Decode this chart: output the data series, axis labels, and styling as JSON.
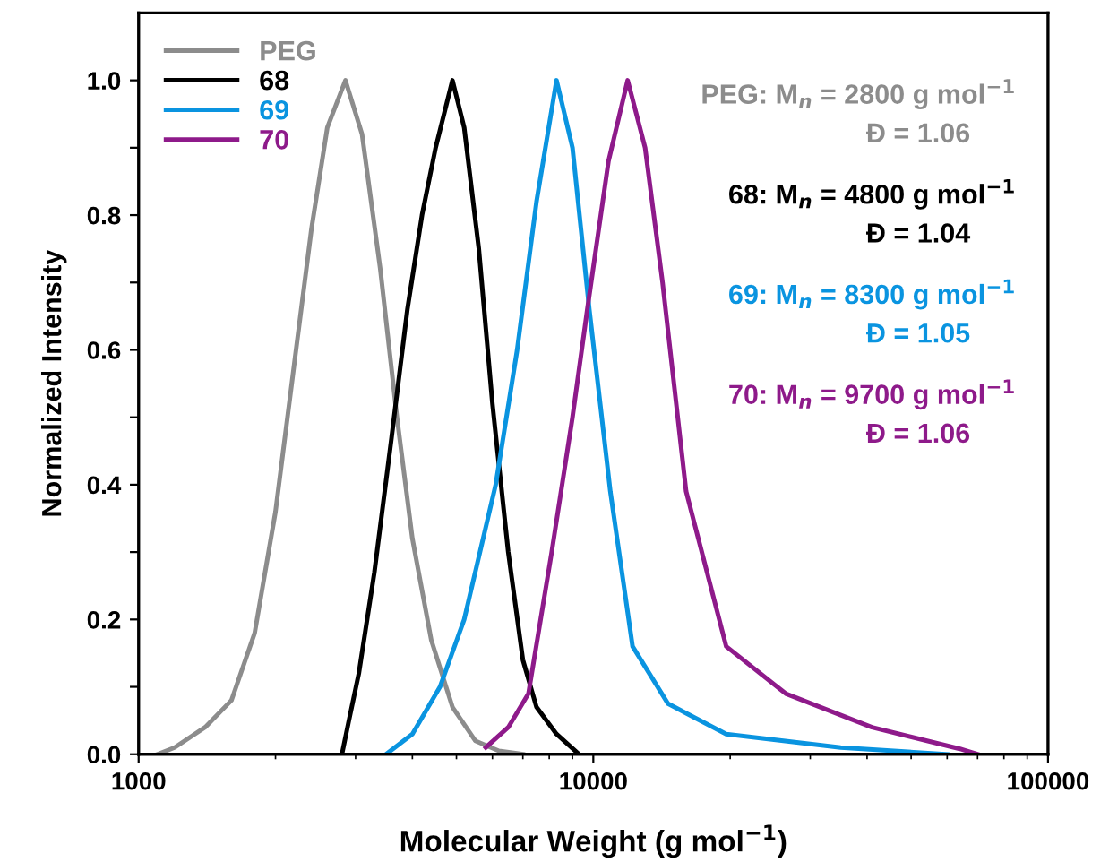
{
  "chart_data": {
    "type": "line",
    "xlabel": "Molecular Weight (g mol$^{−1}$)",
    "ylabel": "Normalized Intensity",
    "log": "x",
    "xlim": [
      1000,
      100000
    ],
    "xticks": [
      1000,
      10000,
      100000
    ],
    "ylim": [
      0,
      1.1
    ],
    "yticks": [
      {
        "value": 0.0,
        "label": "0.0"
      },
      {
        "value": 0.1,
        "label": null
      },
      {
        "value": 0.2,
        "label": "0.2"
      },
      {
        "value": 0.3,
        "label": null
      },
      {
        "value": 0.4,
        "label": "0.4"
      },
      {
        "value": 0.5,
        "label": null
      },
      {
        "value": 0.6,
        "label": "0.6"
      },
      {
        "value": 0.7,
        "label": null
      },
      {
        "value": 0.8,
        "label": "0.8"
      },
      {
        "value": 0.9,
        "label": null
      },
      {
        "value": 1.0,
        "label": "1.0"
      }
    ],
    "grid": false,
    "legend": "top left",
    "marker": "none",
    "line_style": "solid",
    "series": [
      {
        "name": "PEG",
        "color": "#8c8c8c",
        "x": [
          1100,
          1200,
          1400,
          1600,
          1800,
          2000,
          2200,
          2400,
          2600,
          2850,
          3100,
          3400,
          3700,
          4000,
          4400,
          4900,
          5500,
          6200,
          7000
        ],
        "values": [
          0,
          0.01,
          0.04,
          0.08,
          0.18,
          0.36,
          0.58,
          0.78,
          0.93,
          1.0,
          0.92,
          0.72,
          0.5,
          0.32,
          0.17,
          0.07,
          0.02,
          0.005,
          0
        ]
      },
      {
        "name": "68",
        "color": "#000000",
        "x": [
          2800,
          2900,
          3050,
          3300,
          3600,
          3900,
          4200,
          4500,
          4900,
          5200,
          5600,
          6000,
          6500,
          7000,
          7500,
          8300,
          9300
        ],
        "values": [
          0,
          0.05,
          0.12,
          0.27,
          0.47,
          0.66,
          0.8,
          0.9,
          1.0,
          0.93,
          0.75,
          0.52,
          0.3,
          0.14,
          0.07,
          0.03,
          0
        ]
      },
      {
        "name": "69",
        "color": "#0a94e0",
        "x": [
          3500,
          4000,
          4600,
          5200,
          6100,
          6800,
          7500,
          8300,
          9000,
          9800,
          10900,
          12200,
          14600,
          19600,
          35000,
          60000
        ],
        "values": [
          0,
          0.03,
          0.1,
          0.2,
          0.4,
          0.6,
          0.82,
          1.0,
          0.9,
          0.66,
          0.39,
          0.16,
          0.075,
          0.03,
          0.01,
          0
        ]
      },
      {
        "name": "70",
        "color": "#8e1a8a",
        "x": [
          5800,
          6500,
          7200,
          8100,
          9000,
          9700,
          10800,
          11900,
          13000,
          14200,
          16000,
          19600,
          26500,
          41000,
          64000,
          70000
        ],
        "values": [
          0.01,
          0.04,
          0.09,
          0.3,
          0.5,
          0.66,
          0.88,
          1.0,
          0.9,
          0.7,
          0.39,
          0.16,
          0.09,
          0.04,
          0.008,
          0
        ]
      }
    ],
    "annotations": [
      "PEG: M$_{n}$ = 2800 g mol$^{−1}$",
      "Đ = 1.06",
      "68: M$_{n}$ = 4800 g mol$^{−1}$",
      "Đ = 1.04",
      "69: M$_{n}$ = 8300 g mol$^{−1}$",
      "Đ = 1.05",
      "70: M$_{n}$ = 9700 g mol$^{−1}$",
      "Đ = 1.06"
    ]
  }
}
